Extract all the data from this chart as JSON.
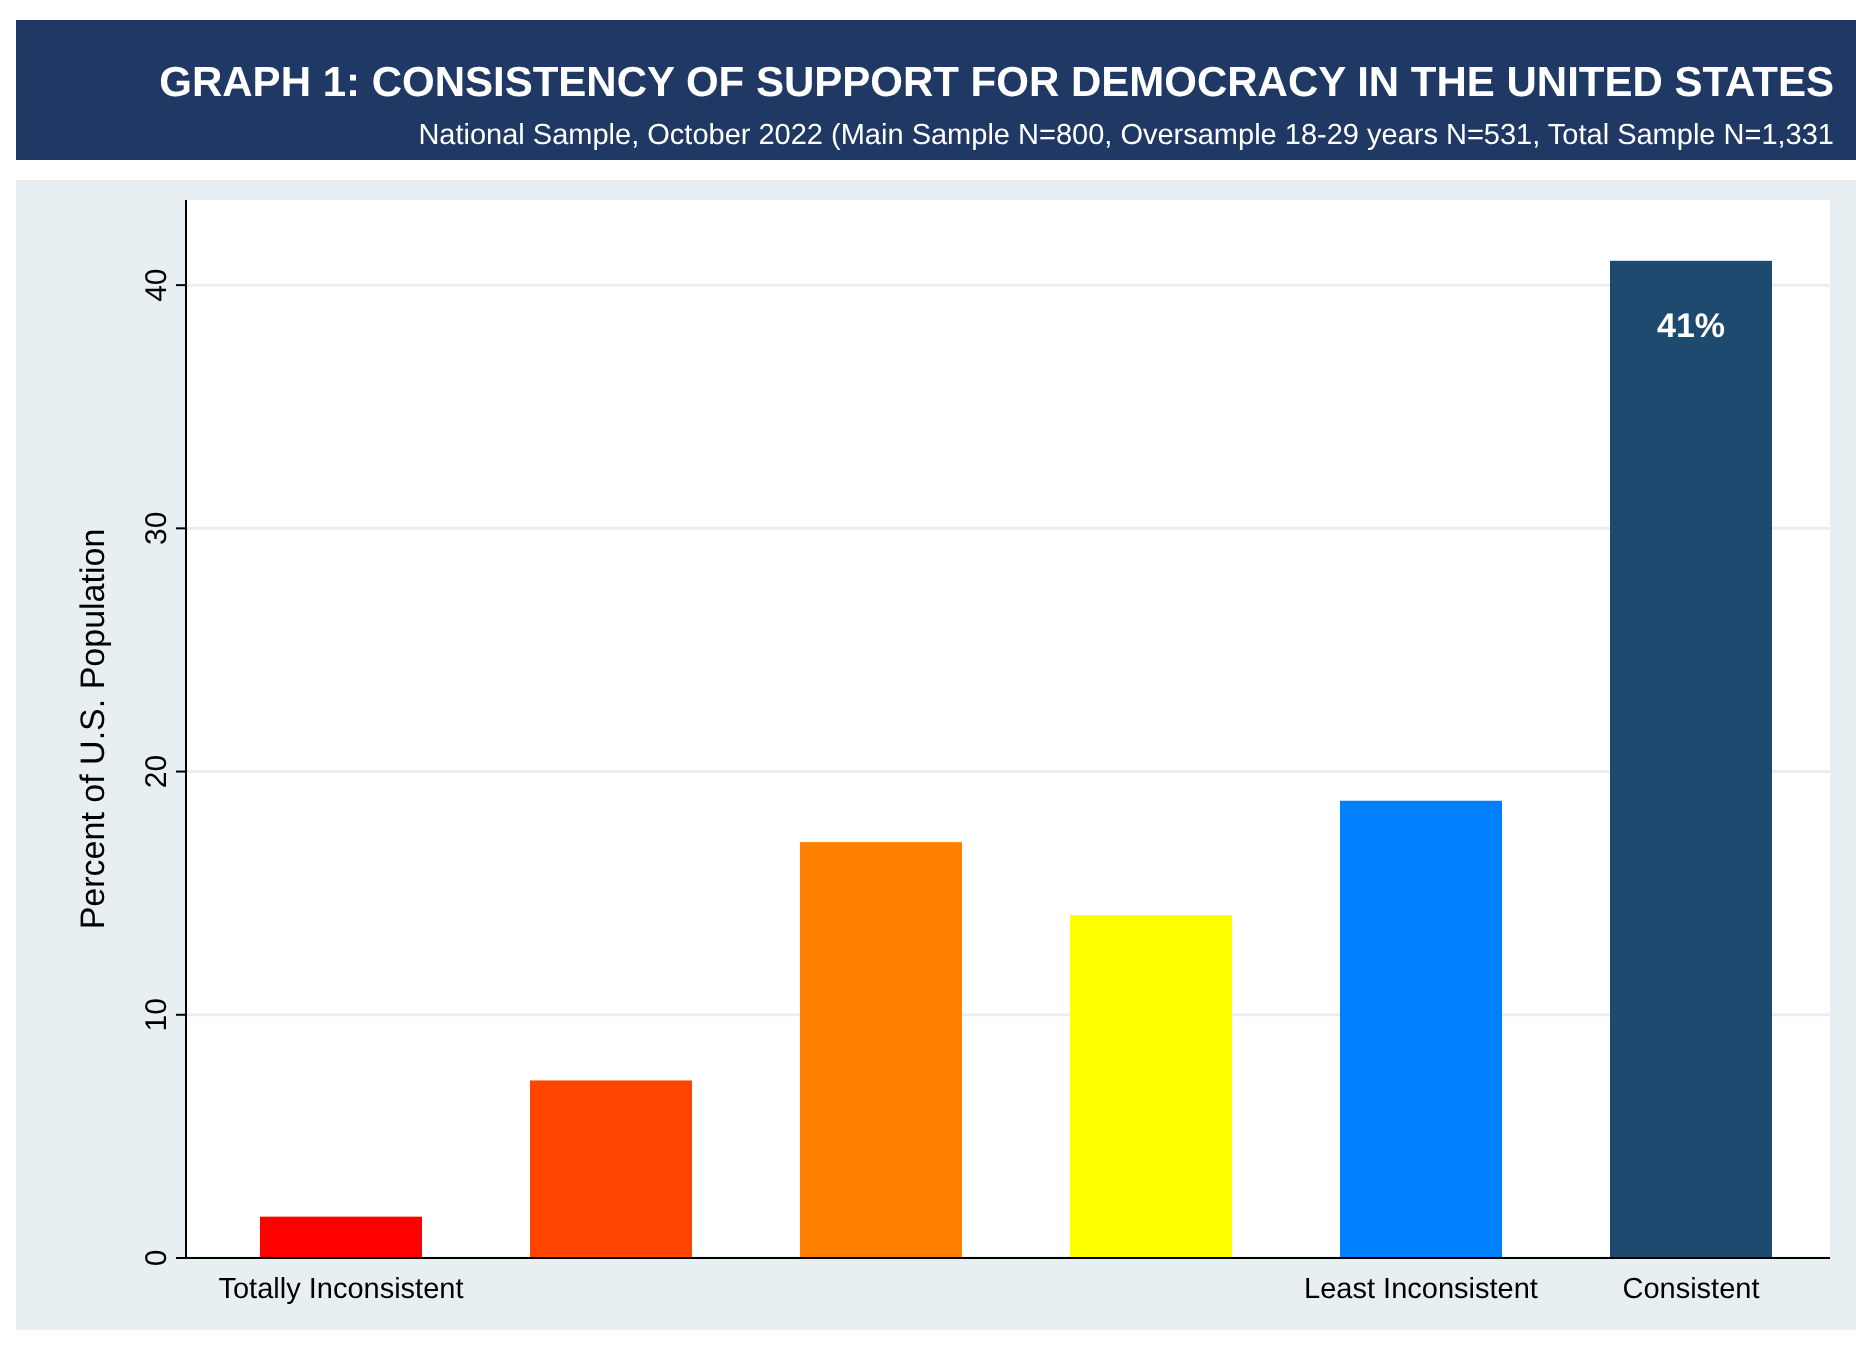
{
  "chart_data": {
    "type": "bar",
    "title": "GRAPH 1: CONSISTENCY OF SUPPORT FOR DEMOCRACY IN THE UNITED STATES",
    "subtitle": "National Sample, October 2022 (Main Sample N=800, Oversample 18-29 years N=531, Total Sample N=1,331",
    "ylabel": "Percent of U.S. Population",
    "categories": [
      "Totally Inconsistent",
      null,
      null,
      null,
      "Least Inconsistent",
      "Consistent"
    ],
    "values": [
      1.7,
      7.3,
      17.1,
      14.1,
      18.8,
      41
    ],
    "colors": [
      "#ff0000",
      "#ff4500",
      "#ff7f00",
      "#ffff00",
      "#0080ff",
      "#1f4a70"
    ],
    "value_labels": [
      null,
      null,
      null,
      null,
      null,
      "41%"
    ],
    "ylim": [
      0,
      43.5
    ],
    "yticks": [
      0,
      10,
      20,
      30,
      40
    ],
    "grid": "y"
  }
}
